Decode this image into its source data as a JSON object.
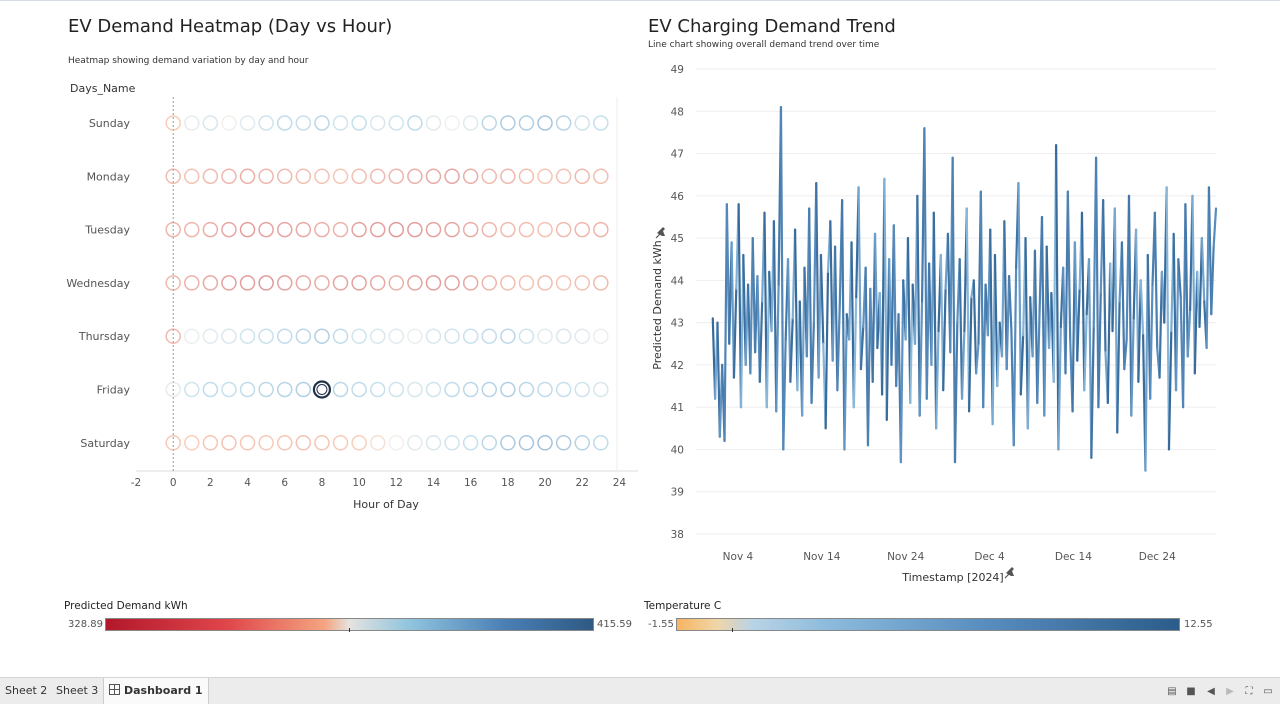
{
  "heatmap": {
    "title": "EV Demand Heatmap (Day vs Hour)",
    "subtitle": "Heatmap showing demand variation by day and hour",
    "row_header": "Days_Name",
    "x_label": "Hour of Day"
  },
  "trend": {
    "title": "EV Charging Demand Trend",
    "subtitle": "Line chart showing overall demand trend over time",
    "y_label": "Predicted Demand kWh",
    "x_label": "Timestamp [2024]"
  },
  "legends": {
    "demand": {
      "title": "Predicted Demand kWh",
      "min": "328.89",
      "max": "415.59"
    },
    "temperature": {
      "title": "Temperature C",
      "min": "-1.55",
      "max": "12.55"
    }
  },
  "colors": {
    "demand_low": "#b2182b",
    "demand_mid": "#e9e5e0",
    "demand_high": "#2e5984",
    "temp_low": "#f7b462",
    "temp_high": "#2b5c8a",
    "line": "#4a7fb5"
  },
  "tabs": {
    "sheet2": "Sheet 2",
    "sheet3": "Sheet 3",
    "dashboard1": "Dashboard 1"
  },
  "chart_data": [
    {
      "type": "heatmap",
      "title": "EV Demand Heatmap (Day vs Hour)",
      "subtitle": "Heatmap showing demand variation by day and hour",
      "xlabel": "Hour of Day",
      "ylabel": "Days_Name",
      "xlim": [
        -2,
        25
      ],
      "xticks": [
        -2,
        0,
        2,
        4,
        6,
        8,
        10,
        12,
        14,
        16,
        18,
        20,
        22,
        24
      ],
      "rows": [
        "Sunday",
        "Monday",
        "Tuesday",
        "Wednesday",
        "Thursday",
        "Friday",
        "Saturday"
      ],
      "hours": [
        0,
        1,
        2,
        3,
        4,
        5,
        6,
        7,
        8,
        9,
        10,
        11,
        12,
        13,
        14,
        15,
        16,
        17,
        18,
        19,
        20,
        21,
        22,
        23
      ],
      "color_scale": "Predicted Demand kWh",
      "color_range": [
        328.89,
        415.59
      ],
      "values": [
        [
          368,
          375,
          378,
          372,
          376,
          380,
          384,
          382,
          386,
          380,
          383,
          378,
          380,
          384,
          376,
          373,
          376,
          386,
          391,
          390,
          394,
          387,
          380,
          382
        ],
        [
          359,
          362,
          358,
          356,
          352,
          356,
          358,
          360,
          362,
          364,
          360,
          358,
          356,
          352,
          350,
          348,
          352,
          358,
          356,
          360,
          364,
          362,
          358,
          360
        ],
        [
          356,
          356,
          352,
          349,
          344,
          346,
          348,
          350,
          352,
          354,
          346,
          344,
          342,
          344,
          346,
          348,
          352,
          356,
          358,
          360,
          362,
          358,
          356,
          355
        ],
        [
          358,
          354,
          350,
          346,
          344,
          342,
          346,
          350,
          352,
          348,
          346,
          350,
          354,
          348,
          344,
          346,
          350,
          356,
          360,
          362,
          360,
          364,
          362,
          358
        ],
        [
          358,
          374,
          376,
          378,
          380,
          382,
          384,
          386,
          390,
          384,
          380,
          378,
          376,
          374,
          378,
          380,
          382,
          384,
          386,
          380,
          376,
          378,
          376,
          374
        ],
        [
          375,
          380,
          384,
          382,
          384,
          386,
          388,
          390,
          415.59,
          386,
          384,
          382,
          380,
          378,
          380,
          384,
          386,
          388,
          390,
          386,
          384,
          382,
          380,
          378
        ],
        [
          366,
          368,
          364,
          362,
          364,
          366,
          364,
          362,
          364,
          366,
          368,
          370,
          372,
          376,
          378,
          380,
          382,
          386,
          392,
          394,
          396,
          392,
          388,
          384
        ]
      ],
      "selected": {
        "row": "Friday",
        "hour": 8
      }
    },
    {
      "type": "line",
      "title": "EV Charging Demand Trend",
      "subtitle": "Line chart showing overall demand trend over time",
      "xlabel": "Timestamp [2024]",
      "ylabel": "Predicted Demand kWh",
      "ylim": [
        38,
        49
      ],
      "yticks": [
        38,
        39,
        40,
        41,
        42,
        43,
        44,
        45,
        46,
        47,
        48,
        49
      ],
      "xticks": [
        "Nov 4",
        "Nov 14",
        "Nov 24",
        "Dec 4",
        "Dec 14",
        "Dec 24"
      ],
      "x_start": "2024-10-30",
      "x_end": "2024-12-31",
      "color_scale": "Temperature C",
      "color_range": [
        -1.55,
        12.55
      ],
      "values": [
        43.1,
        41.2,
        43.0,
        40.3,
        42.0,
        40.2,
        45.8,
        42.5,
        44.9,
        41.7,
        43.8,
        45.8,
        41.0,
        44.6,
        42.0,
        43.9,
        41.8,
        45.0,
        42.3,
        44.1,
        41.6,
        43.5,
        45.6,
        41.0,
        44.2,
        42.8,
        45.4,
        40.9,
        43.9,
        48.1,
        40.0,
        42.6,
        44.5,
        41.6,
        43.1,
        45.2,
        41.4,
        43.5,
        40.8,
        44.3,
        42.2,
        45.7,
        41.1,
        43.0,
        46.3,
        41.7,
        44.6,
        42.5,
        40.5,
        44.2,
        45.4,
        42.1,
        44.8,
        41.4,
        43.4,
        45.9,
        40.0,
        43.2,
        42.6,
        44.9,
        41.0,
        43.6,
        46.2,
        41.9,
        42.9,
        44.3,
        40.1,
        43.8,
        41.6,
        45.1,
        42.4,
        43.7,
        41.3,
        46.4,
        40.7,
        44.5,
        42.0,
        45.3,
        41.5,
        43.2,
        39.7,
        44.0,
        42.6,
        45.0,
        41.1,
        43.9,
        42.5,
        46.0,
        40.8,
        43.5,
        47.6,
        41.2,
        44.4,
        42.0,
        45.6,
        40.5,
        42.8,
        44.6,
        41.4,
        43.8,
        45.1,
        42.3,
        46.9,
        39.7,
        43.0,
        44.5,
        41.2,
        42.8,
        45.7,
        40.9,
        43.6,
        44.0,
        41.8,
        42.5,
        46.1,
        41.0,
        43.9,
        42.7,
        45.2,
        40.6,
        44.6,
        41.5,
        43.0,
        42.2,
        45.4,
        41.9,
        44.1,
        42.8,
        40.1,
        44.3,
        46.3,
        41.3,
        42.7,
        45.0,
        40.5,
        43.6,
        42.2,
        44.7,
        41.1,
        43.3,
        45.5,
        40.8,
        44.8,
        42.4,
        43.7,
        41.6,
        47.2,
        40.0,
        42.9,
        44.3,
        41.8,
        46.1,
        42.6,
        40.9,
        44.9,
        42.1,
        43.8,
        45.6,
        41.4,
        43.2,
        44.5,
        39.8,
        42.9,
        46.9,
        41.0,
        43.7,
        45.9,
        42.3,
        41.1,
        44.4,
        42.8,
        45.7,
        40.4,
        43.5,
        44.9,
        41.9,
        42.6,
        46.0,
        40.8,
        43.1,
        45.2,
        41.6,
        44.0,
        42.7,
        39.5,
        44.6,
        41.2,
        43.9,
        45.6,
        42.4,
        41.7,
        44.2,
        43.0,
        46.2,
        40.0,
        42.8,
        45.1,
        41.4,
        44.5,
        43.6,
        41.0,
        45.8,
        42.2,
        43.3,
        46.0,
        41.8,
        44.2,
        42.9,
        45.0,
        43.5,
        42.4,
        46.2,
        43.2,
        44.8,
        45.7
      ]
    }
  ]
}
